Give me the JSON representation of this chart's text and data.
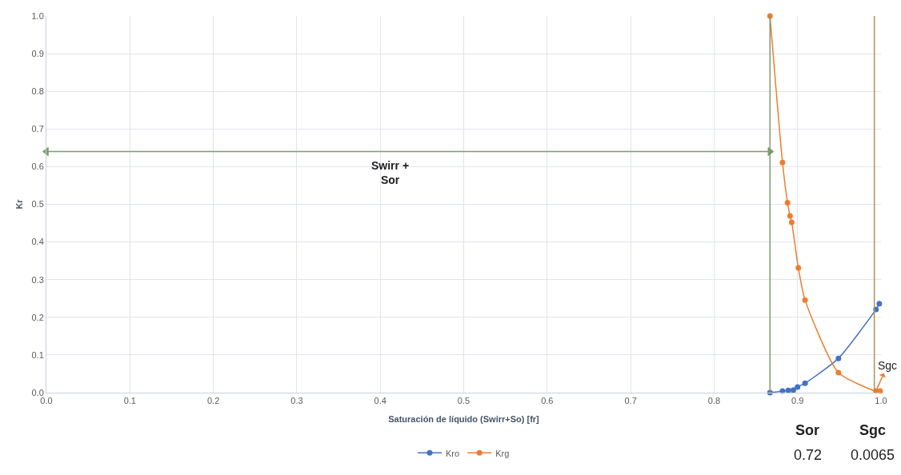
{
  "chart_data": {
    "type": "line",
    "xlabel": "Saturación de líquido (Swirr+So) [fr]",
    "ylabel": "Kr",
    "xlim": [
      0,
      1
    ],
    "xticks": [
      {
        "value": 0,
        "label": "0.0"
      },
      0.1,
      0.2,
      0.3,
      0.4,
      0.5,
      0.6,
      0.7,
      0.8,
      0.9,
      {
        "value": 1,
        "label": "1.0"
      }
    ],
    "ylim": [
      0,
      1
    ],
    "yticks": [
      {
        "value": 0,
        "label": "0.0"
      },
      0.1,
      0.2,
      0.3,
      0.4,
      0.5,
      0.6,
      0.7,
      0.8,
      0.9,
      {
        "value": 1,
        "label": "1.0"
      }
    ],
    "series": [
      {
        "name": "Kro",
        "color": "#4472c4",
        "x": [
          0.867,
          0.882,
          0.889,
          0.893,
          0.895,
          0.9,
          0.909,
          0.949,
          0.994,
          0.998
        ],
        "values": [
          0,
          0.004,
          0.006,
          null,
          0.007,
          0.015,
          0.025,
          0.091,
          0.221,
          0.236
        ]
      },
      {
        "name": "Krg",
        "color": "#ed7d31",
        "x": [
          0.867,
          0.882,
          0.888,
          0.891,
          0.893,
          0.901,
          0.909,
          0.949,
          0.994,
          0.999
        ],
        "values": [
          1.0,
          0.611,
          0.504,
          0.469,
          0.452,
          0.331,
          0.246,
          0.053,
          0.004,
          0.004
        ]
      },
      {
        "type": "line",
        "color": "#7f9a6f",
        "x": [
          0,
          0.867
        ],
        "values": [
          0.64,
          0.64
        ],
        "marker": "triangle"
      }
    ],
    "ref_lines": [
      {
        "axis": "x",
        "value": 0.867,
        "color": "#7f9a6f"
      },
      {
        "axis": "x",
        "value": 0.992,
        "color": "#b0905a"
      }
    ],
    "annotations": [
      "Swirr +\nSor",
      {
        "text": "Sgc",
        "x": 0.994,
        "y": 0.004
      },
      "Sor",
      "0.72",
      "Sgc",
      "0.0065"
    ],
    "grid": true,
    "legend": "bottom",
    "marker": "circle",
    "line_style": "solid"
  }
}
